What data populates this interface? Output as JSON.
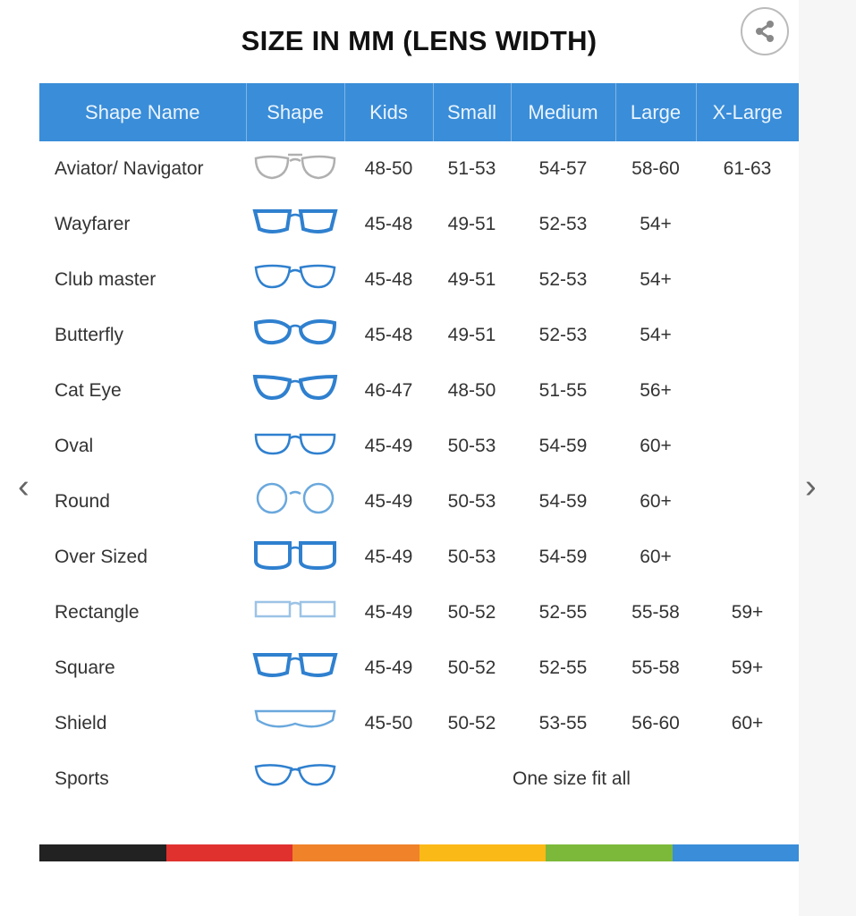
{
  "title": "SIZE IN MM (LENS WIDTH)",
  "share_icon": "share-icon",
  "columns": [
    "Shape Name",
    "Shape",
    "Kids",
    "Small",
    "Medium",
    "Large",
    "X-Large"
  ],
  "rows": [
    {
      "name": "Aviator/ Navigator",
      "icon": "aviator-glasses-icon",
      "color": "#b0b0b0",
      "shape": "aviator",
      "sizes": [
        "48-50",
        "51-53",
        "54-57",
        "58-60",
        "61-63"
      ]
    },
    {
      "name": "Wayfarer",
      "icon": "wayfarer-glasses-icon",
      "color": "#2f80cf",
      "shape": "wayfarer",
      "sizes": [
        "45-48",
        "49-51",
        "52-53",
        "54+",
        ""
      ]
    },
    {
      "name": "Club master",
      "icon": "clubmaster-glasses-icon",
      "color": "#2f80cf",
      "shape": "club",
      "sizes": [
        "45-48",
        "49-51",
        "52-53",
        "54+",
        ""
      ]
    },
    {
      "name": "Butterfly",
      "icon": "butterfly-glasses-icon",
      "color": "#2f80cf",
      "shape": "butterfly",
      "sizes": [
        "45-48",
        "49-51",
        "52-53",
        "54+",
        ""
      ]
    },
    {
      "name": "Cat Eye",
      "icon": "cat-eye-glasses-icon",
      "color": "#2f80cf",
      "shape": "cat",
      "sizes": [
        "46-47",
        "48-50",
        "51-55",
        "56+",
        ""
      ]
    },
    {
      "name": "Oval",
      "icon": "oval-glasses-icon",
      "color": "#2f80cf",
      "shape": "oval",
      "sizes": [
        "45-49",
        "50-53",
        "54-59",
        "60+",
        ""
      ]
    },
    {
      "name": "Round",
      "icon": "round-glasses-icon",
      "color": "#6aa8dd",
      "shape": "round",
      "sizes": [
        "45-49",
        "50-53",
        "54-59",
        "60+",
        ""
      ]
    },
    {
      "name": "Over Sized",
      "icon": "oversized-glasses-icon",
      "color": "#2f80cf",
      "shape": "over",
      "sizes": [
        "45-49",
        "50-53",
        "54-59",
        "60+",
        ""
      ]
    },
    {
      "name": "Rectangle",
      "icon": "rectangle-glasses-icon",
      "color": "#9cc3e6",
      "shape": "rect",
      "sizes": [
        "45-49",
        "50-52",
        "52-55",
        "55-58",
        "59+"
      ]
    },
    {
      "name": "Square",
      "icon": "square-glasses-icon",
      "color": "#2f80cf",
      "shape": "square",
      "sizes": [
        "45-49",
        "50-52",
        "52-55",
        "55-58",
        "59+"
      ]
    },
    {
      "name": "Shield",
      "icon": "shield-glasses-icon",
      "color": "#6aa8dd",
      "shape": "shield",
      "sizes": [
        "45-50",
        "50-52",
        "53-55",
        "56-60",
        "60+"
      ]
    },
    {
      "name": "Sports",
      "icon": "sports-glasses-icon",
      "color": "#2f80cf",
      "shape": "sports",
      "note": "One size fit all"
    }
  ],
  "colorbar": [
    "#222222",
    "#e0312f",
    "#f0822a",
    "#fbb917",
    "#7cb93a",
    "#3a8dd8"
  ],
  "nav": {
    "prev_icon": "chevron-left-icon",
    "next_icon": "chevron-right-icon",
    "prev": "‹",
    "next": "›"
  }
}
